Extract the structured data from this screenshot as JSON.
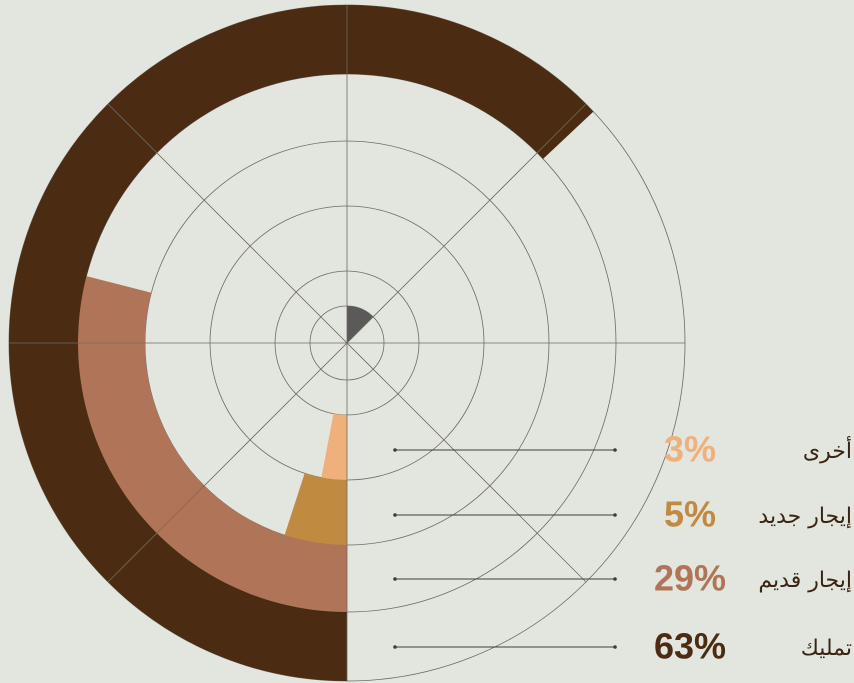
{
  "chart_data": {
    "type": "radial_bar",
    "categories": [
      "أخرى",
      "إيجار جديد",
      "إيجار قديم",
      "تمليك"
    ],
    "values": [
      3,
      5,
      29,
      63
    ],
    "value_labels": [
      "3%",
      "5%",
      "29%",
      "63%"
    ],
    "colors": [
      "#efb07b",
      "#c08b41",
      "#b07558",
      "#4b2c12"
    ]
  }
}
